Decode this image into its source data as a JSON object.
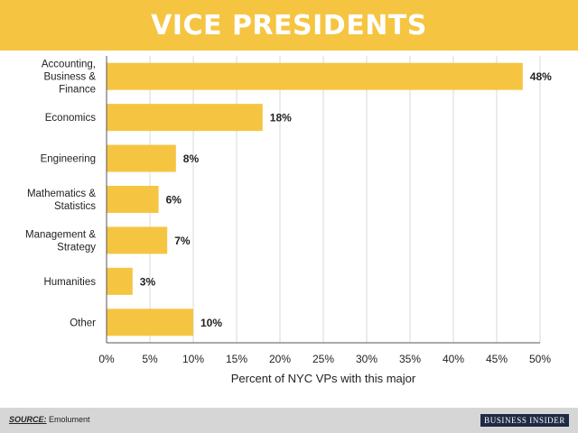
{
  "header": {
    "title": "VICE PRESIDENTS"
  },
  "footer": {
    "source_label": "SOURCE:",
    "source_text": "Emolument",
    "brand": "BUSINESS INSIDER"
  },
  "colors": {
    "bar": "#f5c542",
    "header_bg": "#f5c542",
    "footer_bg": "#d6d6d6",
    "grid": "#d9d9d9",
    "axis": "#555555",
    "text": "#222222",
    "brand_bg": "#1f2a44"
  },
  "chart_data": {
    "type": "bar",
    "orientation": "horizontal",
    "categories": [
      [
        "Accounting,",
        "Business &",
        "Finance"
      ],
      [
        "Economics"
      ],
      [
        "Engineering"
      ],
      [
        "Mathematics &",
        "Statistics"
      ],
      [
        "Management &",
        "Strategy"
      ],
      [
        "Humanities"
      ],
      [
        "Other"
      ]
    ],
    "values": [
      48,
      18,
      8,
      6,
      7,
      3,
      10
    ],
    "value_labels": [
      "48%",
      "18%",
      "8%",
      "6%",
      "7%",
      "3%",
      "10%"
    ],
    "xlabel": "Percent of NYC VPs with this major",
    "xlim": [
      0,
      50
    ],
    "xticks": [
      0,
      5,
      10,
      15,
      20,
      25,
      30,
      35,
      40,
      45,
      50
    ],
    "xtick_labels": [
      "0%",
      "5%",
      "10%",
      "15%",
      "20%",
      "25%",
      "30%",
      "35%",
      "40%",
      "45%",
      "50%"
    ],
    "grid": true
  }
}
